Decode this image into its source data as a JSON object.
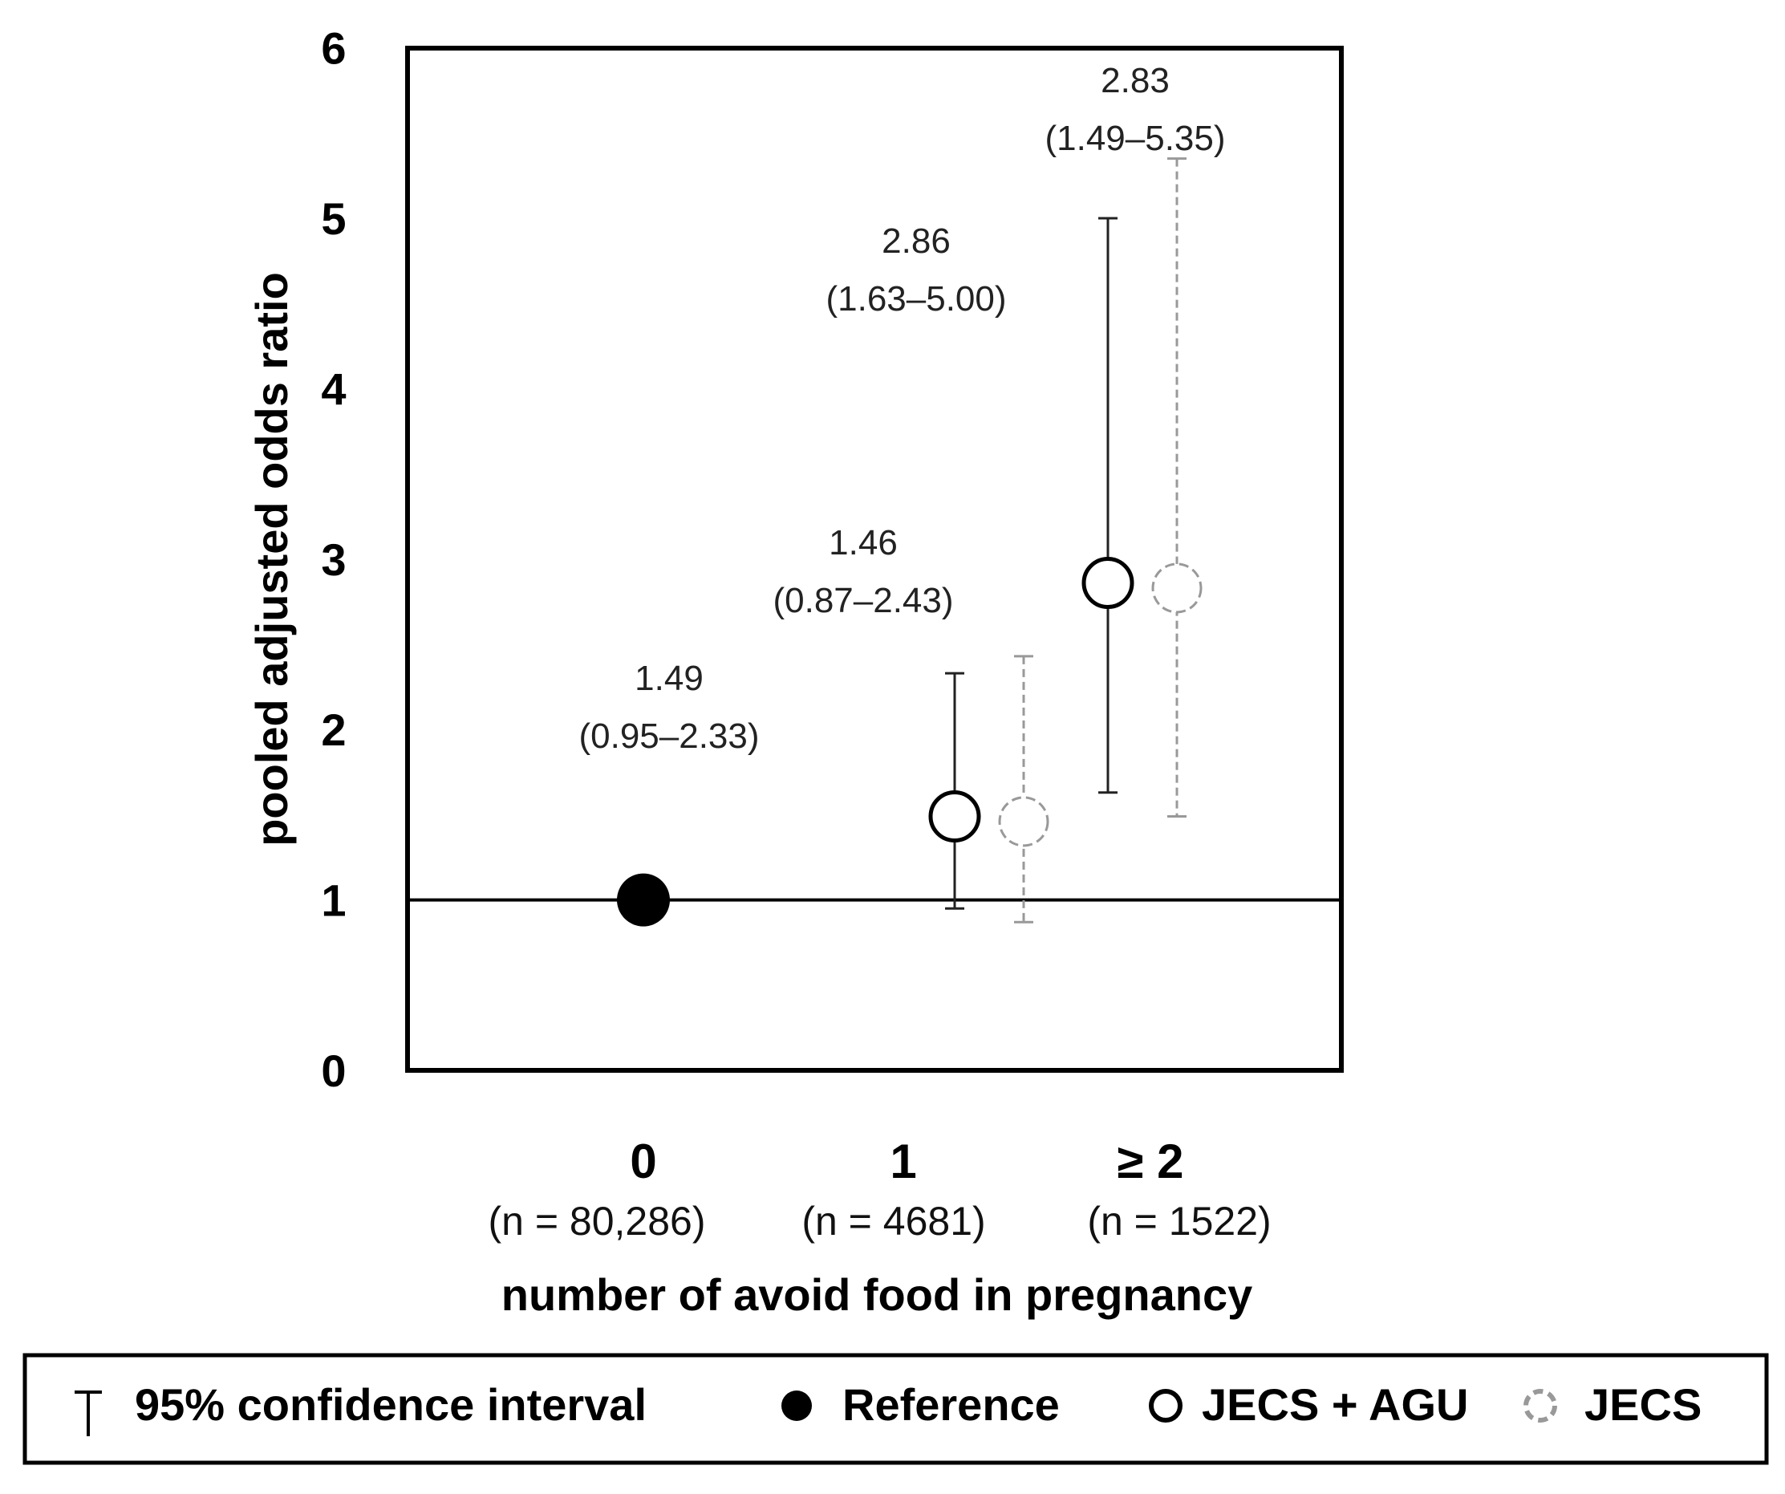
{
  "chart_data": {
    "type": "scatter",
    "ylabel": "pooled adjusted odds ratio",
    "xlabel": "number of avoid food in pregnancy",
    "ylim": [
      0,
      6
    ],
    "yticks": [
      "0",
      "1",
      "2",
      "3",
      "4",
      "5",
      "6"
    ],
    "reference_line": 1,
    "categories": [
      {
        "label": "0",
        "n_label": "(n = 80,286)"
      },
      {
        "label": "1",
        "n_label": "(n = 4681)"
      },
      {
        "label": "≥ 2",
        "n_label": "(n = 1522)"
      }
    ],
    "series": [
      {
        "name": "Reference",
        "style": "filled",
        "color": "#000000",
        "points": [
          {
            "category": 0,
            "value": 1
          }
        ]
      },
      {
        "name": "JECS + AGU",
        "style": "open-solid",
        "color": "#000000",
        "points": [
          {
            "category": 1,
            "value": 1.49,
            "lower": 0.95,
            "upper": 2.33,
            "label": "1.49",
            "ci_label": "(0.95–2.33)"
          },
          {
            "category": 2,
            "value": 2.86,
            "lower": 1.63,
            "upper": 5.0,
            "label": "2.86",
            "ci_label": "(1.63–5.00)"
          }
        ]
      },
      {
        "name": "JECS",
        "style": "open-dashed",
        "color": "#999999",
        "points": [
          {
            "category": 1,
            "value": 1.46,
            "lower": 0.87,
            "upper": 2.43,
            "label": "1.46",
            "ci_label": "(0.87–2.43)"
          },
          {
            "category": 2,
            "value": 2.83,
            "lower": 1.49,
            "upper": 5.35,
            "label": "2.83",
            "ci_label": "(1.49–5.35)"
          }
        ]
      }
    ],
    "legend": {
      "position": "bottom",
      "ci_label": "95% confidence interval",
      "items": [
        "Reference",
        "JECS + AGU",
        "JECS"
      ]
    }
  }
}
